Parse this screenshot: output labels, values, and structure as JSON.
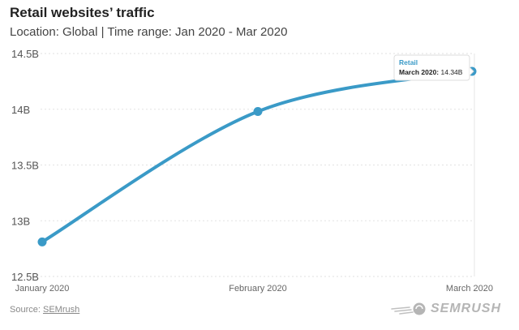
{
  "header": {
    "title": "Retail websites’ traffic",
    "subtitle": "Location: Global | Time range: Jan 2020 - Mar 2020"
  },
  "chart_data": {
    "type": "line",
    "title": "Retail websites’ traffic",
    "subtitle": "Location: Global | Time range: Jan 2020 - Mar 2020",
    "categories": [
      "January 2020",
      "February 2020",
      "March 2020"
    ],
    "series": [
      {
        "name": "Retail",
        "values": [
          12.81,
          13.98,
          14.34
        ],
        "color": "#3a9ac7"
      }
    ],
    "yticks": [
      "12.5B",
      "13B",
      "13.5B",
      "14B",
      "14.5B"
    ],
    "ytick_values": [
      12.5,
      13,
      13.5,
      14,
      14.5
    ],
    "ylim": [
      12.5,
      14.5
    ],
    "grid": true,
    "tooltip": {
      "series": "Retail",
      "label": "March 2020:",
      "value": "14.34B"
    }
  },
  "footer": {
    "source_label": "Source:",
    "source_link": "SEMrush",
    "logo_text": "SEMRUSH",
    "logo_icon": "semrush-fireball-icon",
    "logo_color": "#b5b5b5"
  }
}
